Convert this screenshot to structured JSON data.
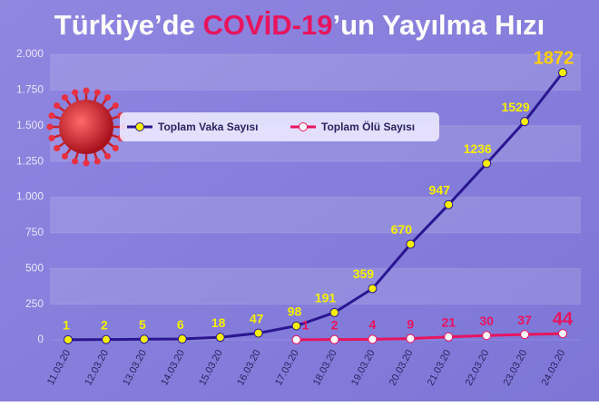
{
  "chart_data": {
    "type": "line",
    "title_parts": [
      "Türkiye’de ",
      "COVİD-19",
      "’un Yayılma Hızı"
    ],
    "categories": [
      "11.03.20",
      "12.03.20",
      "13.03.20",
      "14.03.20",
      "15.03.20",
      "16.03.20",
      "17.03.20",
      "18.03.20",
      "19.03.20",
      "20.03.20",
      "21.03.20",
      "22.03.20",
      "23.03.20",
      "24.03.20"
    ],
    "series": [
      {
        "name": "Toplam Vaka Sayısı",
        "color": "#2a1690",
        "marker_color": "#f4f000",
        "label_color": "#f4f000",
        "values": [
          1,
          2,
          5,
          6,
          18,
          47,
          98,
          191,
          359,
          670,
          947,
          1236,
          1529,
          1872
        ]
      },
      {
        "name": "Toplam Ölü Sayısı",
        "color": "#e8145e",
        "marker_color": "#ffffff",
        "label_color": "#e8145e",
        "values": [
          null,
          null,
          null,
          null,
          null,
          null,
          1,
          2,
          4,
          9,
          21,
          30,
          37,
          44
        ]
      }
    ],
    "ylim": [
      0,
      2000
    ],
    "yticks": [
      0,
      250,
      500,
      750,
      {
        "value": 1000,
        "label": "1.000"
      },
      {
        "value": 1250,
        "label": "1.250"
      },
      {
        "value": 1500,
        "label": "1.500"
      },
      {
        "value": 1750,
        "label": "1.750"
      },
      {
        "value": 2000,
        "label": "2.000"
      }
    ],
    "grid": true,
    "legend": "top-left"
  }
}
